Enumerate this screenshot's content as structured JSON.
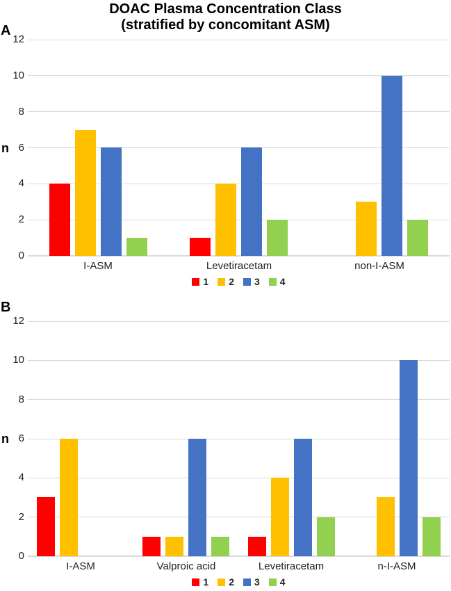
{
  "figure": {
    "title_line1": "DOAC Plasma Concentration Class",
    "title_line2": "(stratified by concomitant ASM)"
  },
  "colors": {
    "class1": "#FF0000",
    "class2": "#FFC000",
    "class3": "#4472C4",
    "class4": "#92D050",
    "gridline": "#D9D9D9"
  },
  "chart_data": [
    {
      "type": "bar",
      "panel": "A",
      "ylabel": "n",
      "ylim": [
        0,
        12
      ],
      "yticks": [
        0,
        2,
        4,
        6,
        8,
        10,
        12
      ],
      "grid": true,
      "legend_position": "bottom",
      "categories": [
        "I-ASM",
        "Levetiracetam",
        "non-I-ASM"
      ],
      "series": [
        {
          "name": "1",
          "color": "#FF0000",
          "values": [
            4,
            1,
            0
          ]
        },
        {
          "name": "2",
          "color": "#FFC000",
          "values": [
            7,
            4,
            3
          ]
        },
        {
          "name": "3",
          "color": "#4472C4",
          "values": [
            6,
            6,
            10
          ]
        },
        {
          "name": "4",
          "color": "#92D050",
          "values": [
            1,
            2,
            2
          ]
        }
      ]
    },
    {
      "type": "bar",
      "panel": "B",
      "ylabel": "n",
      "ylim": [
        0,
        12
      ],
      "yticks": [
        0,
        2,
        4,
        6,
        8,
        10,
        12
      ],
      "grid": true,
      "legend_position": "bottom",
      "categories": [
        "I-ASM",
        "Valproic acid",
        "Levetiracetam",
        "n-I-ASM"
      ],
      "series": [
        {
          "name": "1",
          "color": "#FF0000",
          "values": [
            3,
            1,
            1,
            0
          ]
        },
        {
          "name": "2",
          "color": "#FFC000",
          "values": [
            6,
            1,
            4,
            3
          ]
        },
        {
          "name": "3",
          "color": "#4472C4",
          "values": [
            0,
            6,
            6,
            10
          ]
        },
        {
          "name": "4",
          "color": "#92D050",
          "values": [
            0,
            1,
            2,
            2
          ]
        }
      ]
    }
  ]
}
